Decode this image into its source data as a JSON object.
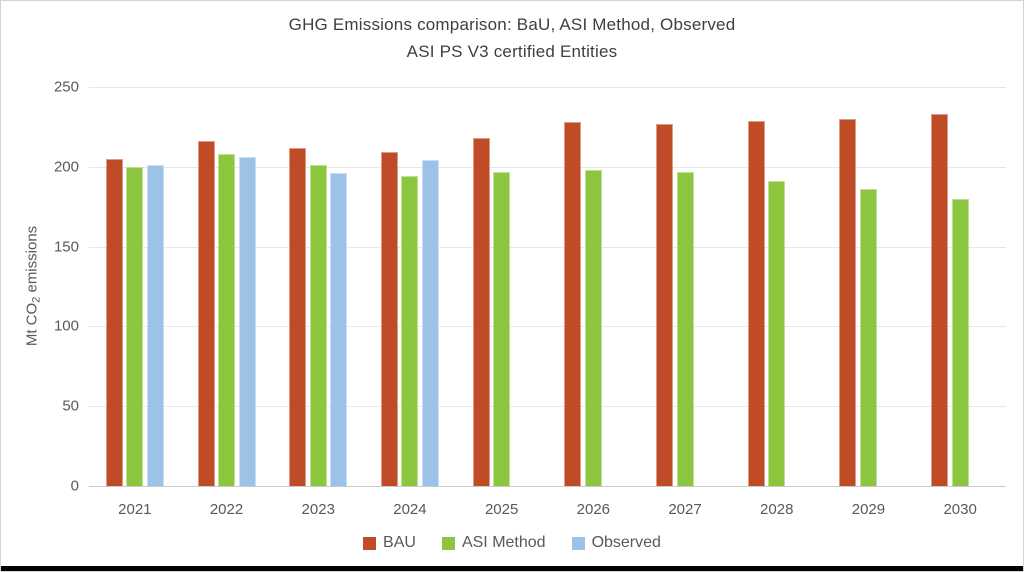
{
  "chart_data": {
    "type": "bar",
    "title": "GHG Emissions comparison: BaU, ASI Method, Observed",
    "subtitle": "ASI PS V3 certified Entities",
    "ylabel": "Mt CO₂ emissions",
    "ylabel_parts": {
      "pre": "Mt CO",
      "sub": "2",
      "post": " emissions"
    },
    "categories": [
      "2021",
      "2022",
      "2023",
      "2024",
      "2025",
      "2026",
      "2027",
      "2028",
      "2029",
      "2030"
    ],
    "series": [
      {
        "name": "BAU",
        "color": "#bf4b27",
        "values": [
          205,
          216,
          212,
          209,
          218,
          228,
          227,
          229,
          230,
          233
        ]
      },
      {
        "name": "ASI Method",
        "color": "#8cc63e",
        "values": [
          200,
          208,
          201,
          194,
          197,
          198,
          197,
          191,
          186,
          180
        ]
      },
      {
        "name": "Observed",
        "color": "#9cc3e7",
        "values": [
          201,
          206,
          196,
          204,
          null,
          null,
          null,
          null,
          null,
          null
        ]
      }
    ],
    "ylim": [
      0,
      250
    ],
    "ytick_step": 50,
    "grid": true,
    "legend_position": "bottom"
  }
}
